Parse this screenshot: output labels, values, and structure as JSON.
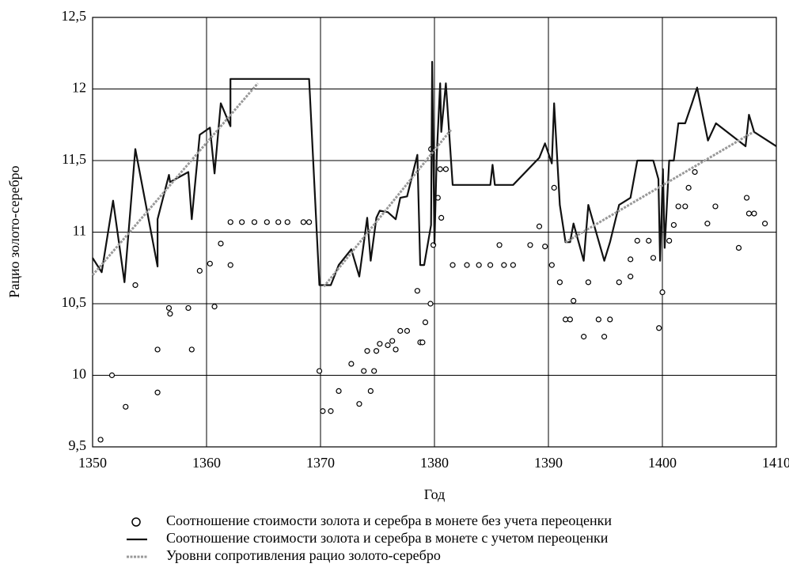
{
  "chart_data": {
    "type": "line",
    "xlabel": "Год",
    "ylabel": "Рацио золото-серебро",
    "xlim": [
      1350,
      1410
    ],
    "xticks": [
      1350,
      1360,
      1370,
      1380,
      1390,
      1400,
      1410
    ],
    "ylim": [
      9.5,
      12.5
    ],
    "yticks": [
      {
        "value": 9.5,
        "label": "9,5"
      },
      10,
      {
        "value": 10.5,
        "label": "10,5"
      },
      11,
      {
        "value": 11.5,
        "label": "11,5"
      },
      12,
      {
        "value": 12.5,
        "label": "12,5"
      }
    ],
    "grid": true,
    "series": [
      {
        "name": "Соотношение стоимости золота и серебра в монете без учета переоценки",
        "type": "scatter",
        "color": "#000000",
        "x": [
          1350.7,
          1351.7,
          1352.9,
          1353.75,
          1355.7,
          1355.7,
          1356.7,
          1356.8,
          1358.4,
          1358.7,
          1359.4,
          1360.3,
          1360.7,
          1361.25,
          1362.1,
          1362.1,
          1363.1,
          1364.2,
          1365.3,
          1366.3,
          1367.1,
          1368.5,
          1369.0,
          1369.9,
          1370.2,
          1370.9,
          1371.6,
          1372.7,
          1373.4,
          1373.8,
          1374.1,
          1374.4,
          1374.7,
          1374.9,
          1375.2,
          1375.9,
          1376.3,
          1376.6,
          1377.0,
          1377.6,
          1378.5,
          1378.75,
          1378.95,
          1379.2,
          1379.65,
          1379.7,
          1379.9,
          1380.3,
          1380.5,
          1380.6,
          1381.0,
          1381.6,
          1382.85,
          1383.9,
          1384.9,
          1385.7,
          1386.1,
          1386.9,
          1388.4,
          1389.2,
          1389.7,
          1390.3,
          1390.5,
          1391.0,
          1391.5,
          1391.9,
          1392.2,
          1393.1,
          1393.5,
          1394.4,
          1394.9,
          1395.4,
          1396.2,
          1397.2,
          1397.2,
          1397.8,
          1398.8,
          1399.2,
          1399.7,
          1400.0,
          1400.6,
          1401.0,
          1401.4,
          1402.0,
          1402.3,
          1402.85,
          1403.95,
          1404.65,
          1406.7,
          1407.4,
          1407.6,
          1408.05,
          1409.0
        ],
        "values": [
          9.55,
          10.0,
          9.78,
          10.63,
          10.18,
          9.88,
          10.47,
          10.43,
          10.47,
          10.18,
          10.73,
          10.78,
          10.48,
          10.92,
          11.07,
          10.77,
          11.07,
          11.07,
          11.07,
          11.07,
          11.07,
          11.07,
          11.07,
          10.03,
          9.75,
          9.75,
          9.89,
          10.08,
          9.8,
          10.03,
          10.17,
          9.89,
          10.03,
          10.17,
          10.22,
          10.21,
          10.24,
          10.18,
          10.31,
          10.31,
          10.59,
          10.23,
          10.23,
          10.37,
          10.5,
          11.58,
          10.91,
          11.24,
          11.44,
          11.1,
          11.44,
          10.77,
          10.77,
          10.77,
          10.77,
          10.91,
          10.77,
          10.77,
          10.91,
          11.04,
          10.9,
          10.77,
          11.31,
          10.65,
          10.39,
          10.39,
          10.52,
          10.27,
          10.65,
          10.39,
          10.27,
          10.39,
          10.65,
          10.81,
          10.69,
          10.94,
          10.94,
          10.82,
          10.33,
          10.58,
          10.94,
          11.05,
          11.18,
          11.18,
          11.31,
          11.42,
          11.06,
          11.18,
          10.89,
          11.24,
          11.13,
          11.13,
          11.06
        ]
      },
      {
        "name": "Соотношение стоимости золота и серебра в монете с учетом переоценки",
        "type": "line",
        "color": "#111111",
        "x": [
          1350,
          1350.8,
          1351.8,
          1352.8,
          1353.75,
          1355.7,
          1355.7,
          1356.7,
          1356.8,
          1358.4,
          1358.7,
          1359.4,
          1360.3,
          1360.7,
          1361.25,
          1362.1,
          1362.1,
          1369.0,
          1369.9,
          1370.2,
          1370.9,
          1371.6,
          1372.7,
          1373.4,
          1374.1,
          1374.4,
          1374.9,
          1375.2,
          1375.9,
          1376.6,
          1377.0,
          1377.6,
          1378.5,
          1378.75,
          1379.1,
          1379.7,
          1379.8,
          1380.0,
          1380.2,
          1380.5,
          1380.6,
          1381.0,
          1381.6,
          1384.9,
          1385.1,
          1385.3,
          1386.9,
          1389.2,
          1389.7,
          1390.3,
          1390.5,
          1391.0,
          1391.5,
          1391.9,
          1392.2,
          1393.1,
          1393.5,
          1394.9,
          1395.4,
          1396.2,
          1397.2,
          1397.8,
          1399.2,
          1399.65,
          1399.8,
          1400.05,
          1400.2,
          1400.6,
          1401.0,
          1401.4,
          1402.0,
          1402.6,
          1403.05,
          1404.0,
          1404.7,
          1407.3,
          1407.6,
          1408.05,
          1410
        ],
        "values": [
          10.82,
          10.72,
          11.22,
          10.65,
          11.58,
          10.76,
          11.09,
          11.4,
          11.35,
          11.42,
          11.09,
          11.68,
          11.73,
          11.41,
          11.9,
          11.74,
          12.07,
          12.07,
          10.63,
          10.63,
          10.63,
          10.77,
          10.88,
          10.69,
          11.1,
          10.8,
          11.1,
          11.15,
          11.14,
          11.09,
          11.24,
          11.25,
          11.54,
          10.77,
          10.77,
          11.05,
          12.19,
          10.92,
          11.54,
          12.04,
          11.7,
          12.04,
          11.33,
          11.33,
          11.47,
          11.33,
          11.33,
          11.52,
          11.62,
          11.48,
          11.9,
          11.19,
          10.93,
          10.93,
          11.06,
          10.8,
          11.19,
          10.8,
          10.93,
          11.19,
          11.24,
          11.5,
          11.5,
          11.37,
          10.8,
          11.44,
          10.89,
          11.5,
          11.5,
          11.76,
          11.76,
          11.9,
          12.01,
          11.64,
          11.76,
          11.6,
          11.82,
          11.7,
          11.6
        ]
      },
      {
        "name": "Уровни сопротивления рацио золото-серебро",
        "type": "line",
        "dashed": true,
        "color": "#999999",
        "x": [
          1350,
          1364.5,
          1367,
          1370.3,
          1381.5,
          1386,
          1391.5,
          1408.0
        ],
        "values": [
          10.7,
          12.04,
          null,
          10.62,
          11.72,
          null,
          10.93,
          11.7
        ]
      }
    ]
  }
}
